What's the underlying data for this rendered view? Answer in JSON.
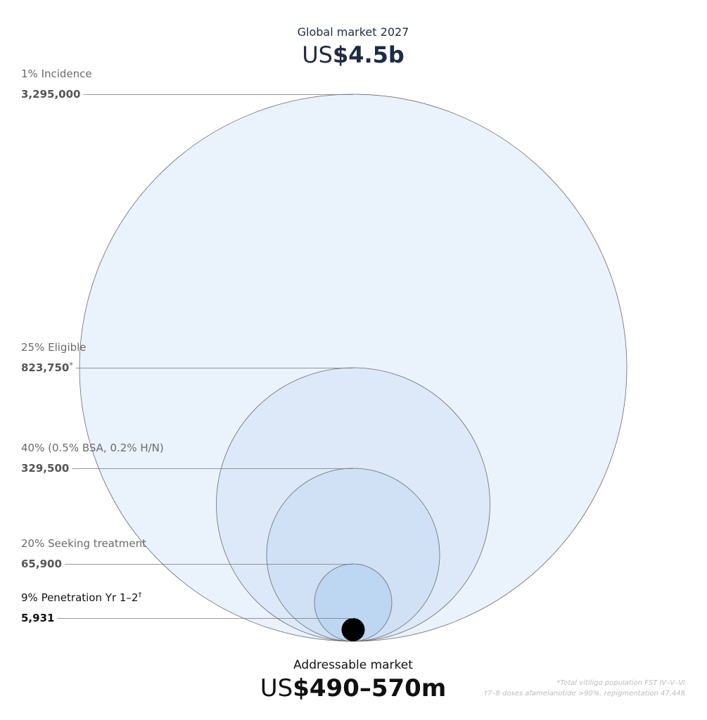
{
  "chart_data": {
    "type": "nested-circles",
    "title": "Global market 2027",
    "headline": {
      "prefix": "US",
      "amount": "$4.5b"
    },
    "categories": [
      "1% Incidence",
      "25% Eligible",
      "40% (0.5% BSA, 0.2% H/N)",
      "20% Seeking treatment",
      "9% Penetration Yr 1–2"
    ],
    "category_marks": [
      null,
      null,
      null,
      null,
      "†"
    ],
    "values": [
      3295000,
      823750,
      329500,
      65900,
      5931
    ],
    "value_labels": [
      "3,295,000",
      "823,750",
      "329,500",
      "65,900",
      "5,931"
    ],
    "value_marks": [
      null,
      "*",
      null,
      null,
      null
    ],
    "colors": [
      "#eaf2fc",
      "#dde9f8",
      "#d0e1f5",
      "#bdd6f2",
      "#000000"
    ],
    "footer_title": "Addressable market",
    "footer_headline": {
      "prefix": "US",
      "amount": "$490–570m"
    },
    "footnotes": [
      "*Total vitiligo population FST IV–V–VI",
      "†7–8 doses afamelanotide >90%, repigmentation 47,448"
    ]
  }
}
